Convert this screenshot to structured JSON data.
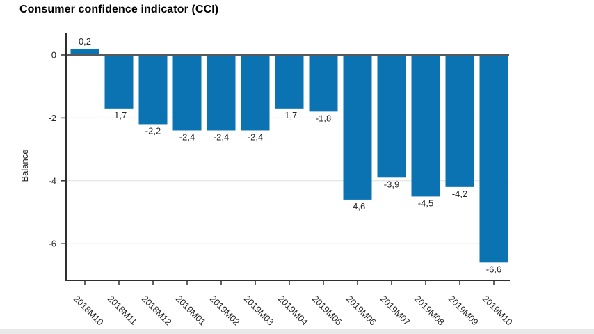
{
  "chart_data": {
    "type": "bar",
    "title": "Consumer confidence indicator (CCI)",
    "xlabel": "",
    "ylabel": "Balance",
    "categories": [
      "2018M10",
      "2018M11",
      "2018M12",
      "2019M01",
      "2019M02",
      "2019M03",
      "2019M04",
      "2019M05",
      "2019M06",
      "2019M07",
      "2019M08",
      "2019M09",
      "2019M10"
    ],
    "values": [
      0.2,
      -1.7,
      -2.2,
      -2.4,
      -2.4,
      -2.4,
      -1.7,
      -1.8,
      -4.6,
      -3.9,
      -4.5,
      -4.2,
      -6.6
    ],
    "value_labels": [
      "0,2",
      "-1,7",
      "-2,2",
      "-2,4",
      "-2,4",
      "-2,4",
      "-1,7",
      "-1,8",
      "-4,6",
      "-3,9",
      "-4,5",
      "-4,2",
      "-6,6"
    ],
    "yticks": [
      0,
      -2,
      -4,
      -6
    ],
    "ytick_labels": [
      "0",
      "-2",
      "-4",
      "-6"
    ],
    "ylim": [
      -7.2,
      0.7
    ],
    "grid": "horizontal lines at -2, -4, -6",
    "legend": "none",
    "decimal_separator": ",",
    "colors": {
      "bar": "#0b73b2",
      "zero_line": "#58595b",
      "axis": "#2f2f2f",
      "grid_line": "#dfdfdf",
      "text": "#262626",
      "title_text": "#000000"
    }
  }
}
